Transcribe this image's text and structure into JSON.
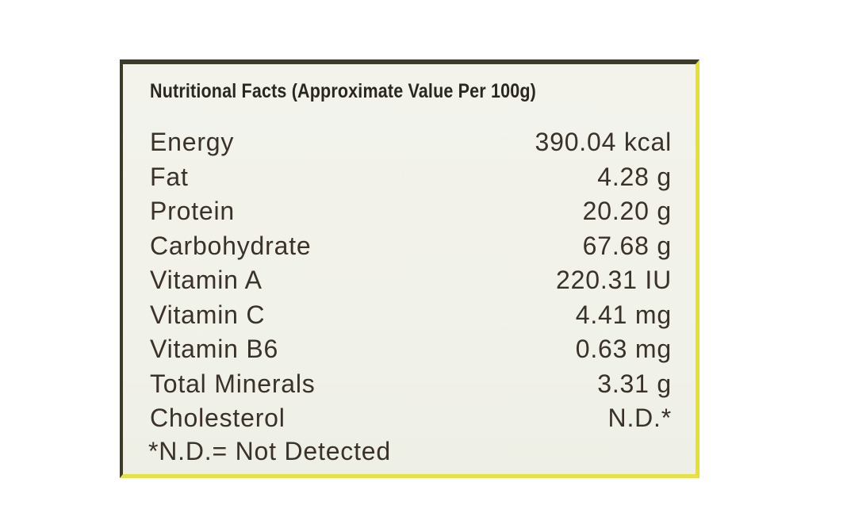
{
  "title": "Nutritional Facts (Approximate Value Per 100g)",
  "rows": [
    {
      "name": "Energy",
      "value": "390.04 kcal"
    },
    {
      "name": "Fat",
      "value": "4.28 g"
    },
    {
      "name": "Protein",
      "value": "20.20 g"
    },
    {
      "name": "Carbohydrate",
      "value": "67.68 g"
    },
    {
      "name": "Vitamin A",
      "value": "220.31 IU"
    },
    {
      "name": "Vitamin C",
      "value": "4.41 mg"
    },
    {
      "name": "Vitamin B6",
      "value": "0.63 mg"
    },
    {
      "name": "Total Minerals",
      "value": "3.31 g"
    },
    {
      "name": "Cholesterol",
      "value": "N.D.*"
    }
  ],
  "footnote": "*N.D.= Not Detected",
  "colors": {
    "border": "#3d3a2a",
    "accent_yellow": "#e8e02a",
    "background": "#f2f2eb",
    "text": "#3a3128"
  }
}
